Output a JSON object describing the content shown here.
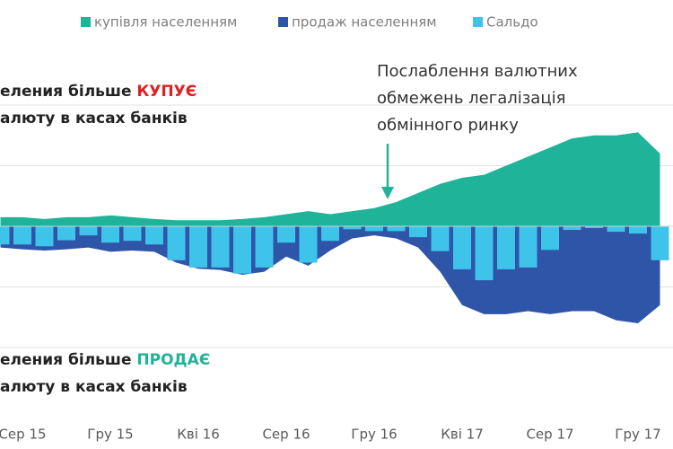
{
  "chart_data": {
    "type": "area_bar",
    "categories": [
      null,
      "Сер 15",
      null,
      null,
      null,
      "Гру 15",
      null,
      null,
      null,
      "Кві 16",
      null,
      null,
      null,
      "Сер 16",
      null,
      null,
      null,
      "Гру 16",
      null,
      null,
      null,
      "Кві 17",
      null,
      null,
      null,
      "Сер 17",
      null,
      null,
      null,
      "Гру 17",
      null
    ],
    "series": [
      {
        "name": "купівля населенням",
        "color": "#1fb39a",
        "kind": "area",
        "values": [
          0.15,
          0.15,
          0.12,
          0.15,
          0.15,
          0.18,
          0.15,
          0.12,
          0.1,
          0.1,
          0.1,
          0.12,
          0.15,
          0.2,
          0.25,
          0.2,
          0.25,
          0.3,
          0.4,
          0.55,
          0.7,
          0.8,
          0.85,
          1.0,
          1.15,
          1.3,
          1.45,
          1.5,
          1.5,
          1.55,
          1.2
        ]
      },
      {
        "name": "продаж населенням",
        "color": "#2e55a8",
        "kind": "area",
        "values": [
          -0.35,
          -0.38,
          -0.4,
          -0.38,
          -0.35,
          -0.42,
          -0.4,
          -0.42,
          -0.6,
          -0.7,
          -0.72,
          -0.8,
          -0.75,
          -0.5,
          -0.65,
          -0.4,
          -0.2,
          -0.15,
          -0.2,
          -0.35,
          -0.75,
          -1.3,
          -1.45,
          -1.45,
          -1.4,
          -1.45,
          -1.4,
          -1.4,
          -1.55,
          -1.6,
          -1.3
        ]
      },
      {
        "name": "Сальдо",
        "color": "#3ec3ea",
        "kind": "bar",
        "values": [
          -0.3,
          -0.3,
          -0.33,
          -0.23,
          -0.15,
          -0.27,
          -0.24,
          -0.3,
          -0.56,
          -0.68,
          -0.68,
          -0.78,
          -0.68,
          -0.27,
          -0.6,
          -0.24,
          -0.05,
          -0.08,
          -0.08,
          -0.18,
          -0.41,
          -0.71,
          -0.89,
          -0.71,
          -0.68,
          -0.39,
          -0.06,
          -0.03,
          -0.09,
          -0.12,
          -0.56
        ]
      }
    ],
    "ylim": [
      -3,
      3
    ],
    "yticks": [
      -2,
      -1,
      1,
      2
    ],
    "grid": true,
    "buy_note": {
      "line1": "еления більше ",
      "highlight": "КУПУЄ",
      "highlight_color": "#e02020",
      "line2": "алюту в касах банків"
    },
    "sell_note": {
      "line1": "еления більше ",
      "highlight": "ПРОДАЄ",
      "highlight_color": "#1fb39a",
      "line2": "алюту в касах банків"
    },
    "annotation": {
      "lines": [
        "Послаблення валютних",
        "обмежень легалізація",
        "обмінного ринку"
      ],
      "category_index": 17
    }
  }
}
